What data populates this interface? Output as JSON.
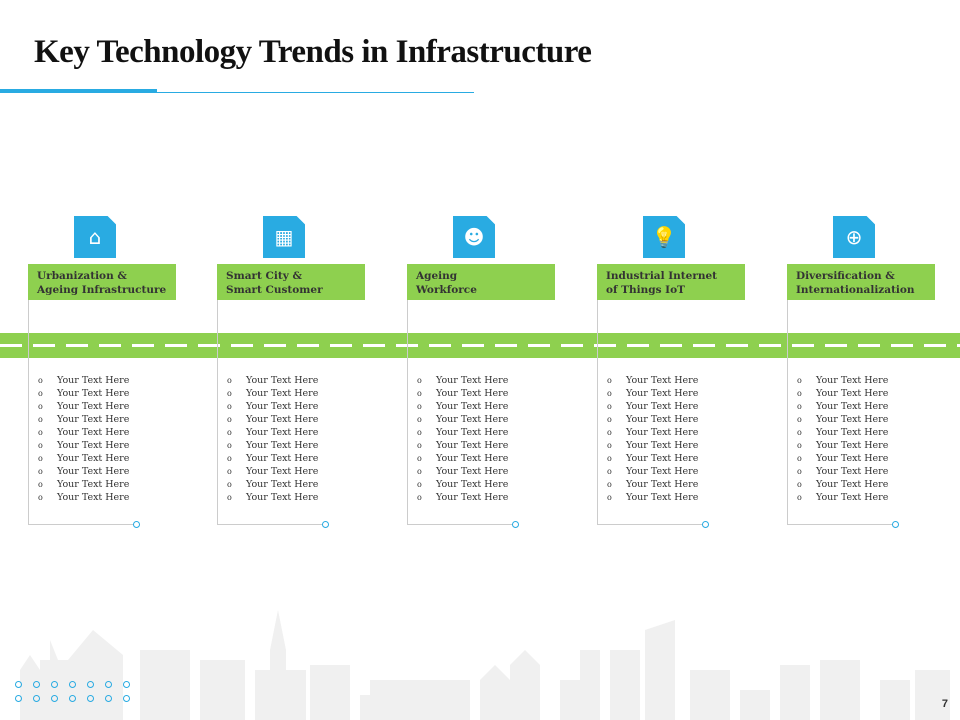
{
  "title": "Key Technology Trends in Infrastructure",
  "columns": [
    {
      "line1": "Urbanization &",
      "line2": "Ageing Infrastructure",
      "icon": "house-icon",
      "glyph": "⌂"
    },
    {
      "line1": "Smart City &",
      "line2": "Smart Customer",
      "icon": "smart-building-icon",
      "glyph": "▦"
    },
    {
      "line1": "Ageing",
      "line2": "Workforce",
      "icon": "people-group-icon",
      "glyph": "☻"
    },
    {
      "line1": "Industrial Internet",
      "line2": "of Things IoT",
      "icon": "lightbulb-icon",
      "glyph": "💡"
    },
    {
      "line1": "Diversification &",
      "line2": "Internationalization",
      "icon": "globe-dollar-icon",
      "glyph": "⊕"
    }
  ],
  "bullet_text": "Your Text Here",
  "page_number": "7"
}
